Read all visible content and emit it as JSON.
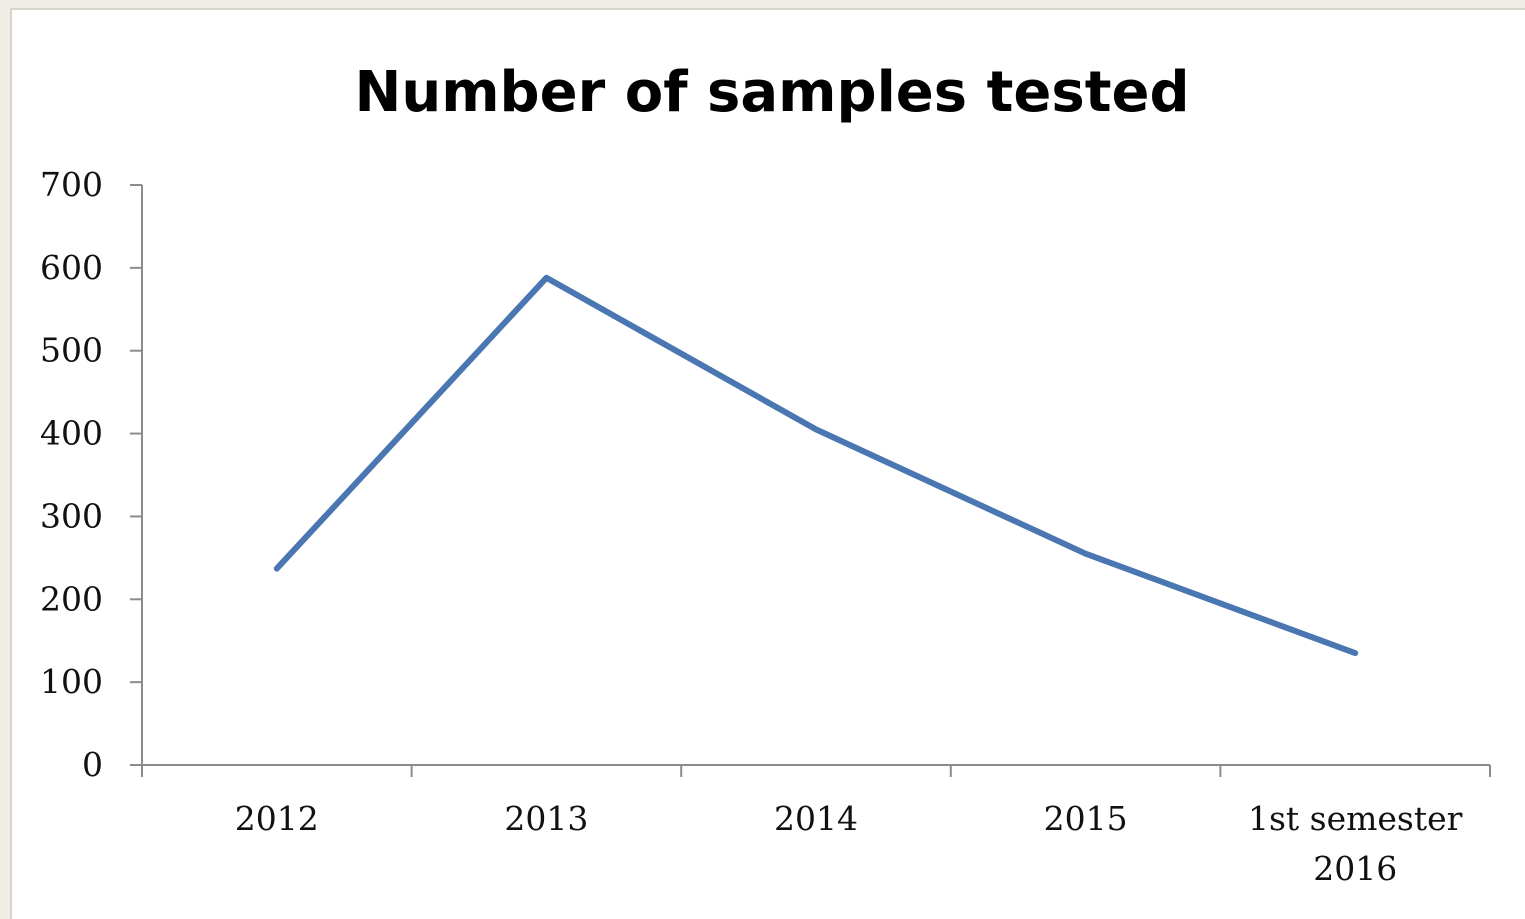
{
  "chart_data": {
    "type": "line",
    "title": "Number of samples tested",
    "xlabel": "",
    "ylabel": "",
    "categories": [
      [
        "2012"
      ],
      [
        "2013"
      ],
      [
        "2014"
      ],
      [
        "2015"
      ],
      [
        "1st semester",
        "2016"
      ]
    ],
    "series": [
      {
        "values": [
          237,
          588,
          405,
          255,
          135
        ],
        "color": "#4a76b2"
      }
    ],
    "ylim": [
      0,
      700
    ],
    "yticks": [
      "0",
      "100",
      "200",
      "300",
      "400",
      "500",
      "600",
      "700"
    ],
    "grid": false,
    "legend": "none"
  }
}
